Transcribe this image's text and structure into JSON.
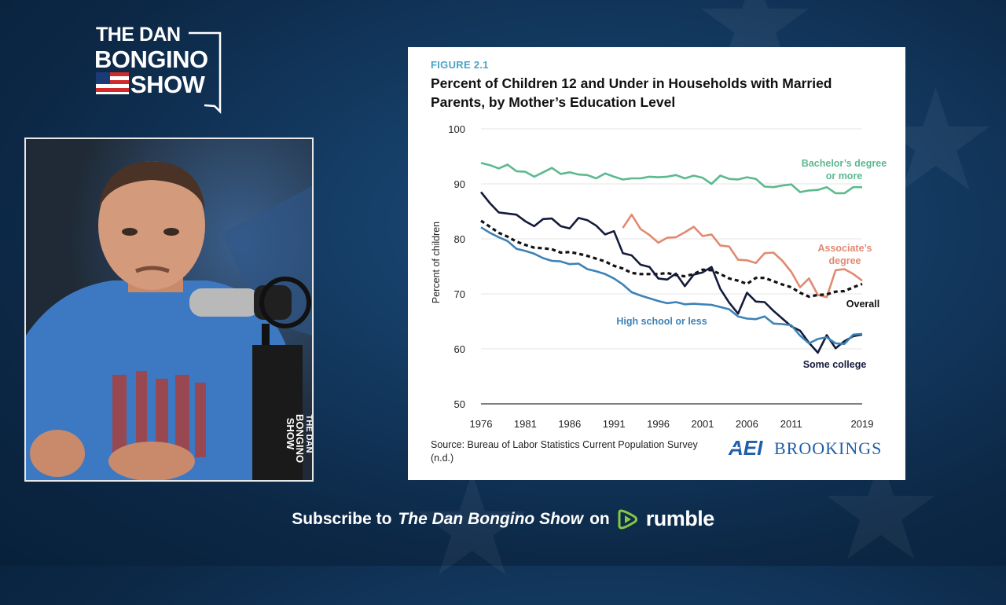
{
  "logo": {
    "line1": "THE DAN",
    "line2": "BONGINO",
    "line3": "SHOW"
  },
  "mic_logo": {
    "line1": "THE DAN",
    "line2": "BONGINO",
    "line3": "SHOW"
  },
  "figure_label": "FIGURE 2.1",
  "chart_title": "Percent of Children 12 and Under in Households with Married Parents, by Mother’s Education Level",
  "source": "Source: Bureau of Labor Statistics Current Population Survey (n.d.)",
  "aei_logo": {
    "left": "AEI",
    "right": "BROOKINGS"
  },
  "subscribe": {
    "prefix": "Subscribe to",
    "show": "The Dan Bongino Show",
    "on": "on",
    "platform": "rumble"
  },
  "colors": {
    "bachelors": "#5cb98f",
    "associates": "#e08a72",
    "overall": "#111111",
    "some_college": "#141a3c",
    "high_school": "#3d82b6",
    "accent": "#4aa3c8"
  },
  "chart_data": {
    "type": "line",
    "ylabel": "Percent of children",
    "xlabel": "",
    "ylim": [
      50,
      100
    ],
    "xlim": [
      1976,
      2019
    ],
    "yticks": [
      "100",
      "90",
      "80",
      "70",
      "60",
      "50"
    ],
    "xticks": [
      "1976",
      "1981",
      "1986",
      "1991",
      "1996",
      "2001",
      "2006",
      "2011",
      "2019"
    ],
    "grid": true,
    "series": [
      {
        "name": "Bachelor’s degree or more",
        "label_lines": [
          "Bachelor’s degree",
          "or more"
        ],
        "color": "#5cb98f",
        "style": "solid",
        "x": [
          1976,
          1977,
          1978,
          1979,
          1980,
          1981,
          1982,
          1983,
          1984,
          1985,
          1986,
          1987,
          1988,
          1989,
          1990,
          1991,
          1992,
          1993,
          1994,
          1995,
          1996,
          1997,
          1998,
          1999,
          2000,
          2001,
          2002,
          2003,
          2004,
          2005,
          2006,
          2007,
          2008,
          2009,
          2010,
          2011,
          2012,
          2013,
          2014,
          2015,
          2016,
          2017,
          2018,
          2019
        ],
        "y": [
          93.8,
          93.4,
          92.8,
          93.5,
          92.3,
          92.2,
          91.3,
          92.1,
          92.9,
          91.8,
          92.1,
          91.7,
          91.6,
          91.0,
          91.9,
          91.3,
          90.8,
          91.0,
          91.0,
          91.3,
          91.2,
          91.3,
          91.6,
          91.0,
          91.5,
          91.1,
          90.0,
          91.5,
          90.9,
          90.8,
          91.2,
          90.9,
          89.5,
          89.4,
          89.7,
          89.9,
          88.5,
          88.8,
          88.9,
          89.4,
          88.3,
          88.3,
          89.4,
          89.4
        ]
      },
      {
        "name": "Associate’s degree",
        "label_lines": [
          "Associate’s",
          "degree"
        ],
        "color": "#e08a72",
        "style": "solid",
        "x": [
          1992,
          1993,
          1994,
          1995,
          1996,
          1997,
          1998,
          1999,
          2000,
          2001,
          2002,
          2003,
          2004,
          2005,
          2006,
          2007,
          2008,
          2009,
          2010,
          2011,
          2012,
          2013,
          2014,
          2015,
          2016,
          2017,
          2018,
          2019
        ],
        "y": [
          82.0,
          84.4,
          81.8,
          80.7,
          79.3,
          80.2,
          80.3,
          81.2,
          82.2,
          80.5,
          80.8,
          78.8,
          78.6,
          76.2,
          76.1,
          75.6,
          77.4,
          77.5,
          76.0,
          74.0,
          71.2,
          72.8,
          69.8,
          69.4,
          74.3,
          74.5,
          73.6,
          72.4
        ]
      },
      {
        "name": "Overall",
        "label_lines": [
          "Overall"
        ],
        "color": "#111111",
        "style": "dashed",
        "x": [
          1976,
          1977,
          1978,
          1979,
          1980,
          1981,
          1982,
          1983,
          1984,
          1985,
          1986,
          1987,
          1988,
          1989,
          1990,
          1991,
          1992,
          1993,
          1994,
          1995,
          1996,
          1997,
          1998,
          1999,
          2000,
          2001,
          2002,
          2003,
          2004,
          2005,
          2006,
          2007,
          2008,
          2009,
          2010,
          2011,
          2012,
          2013,
          2014,
          2015,
          2016,
          2017,
          2018,
          2019
        ],
        "y": [
          83.3,
          82.2,
          81.1,
          80.4,
          79.5,
          78.9,
          78.4,
          78.3,
          78.1,
          77.5,
          77.6,
          77.3,
          76.9,
          76.4,
          75.9,
          75.1,
          74.6,
          73.8,
          73.6,
          73.6,
          73.6,
          73.8,
          73.4,
          73.2,
          73.6,
          74.4,
          74.3,
          73.6,
          72.8,
          72.4,
          71.8,
          72.9,
          72.9,
          72.3,
          71.7,
          71.2,
          70.2,
          69.5,
          69.8,
          69.9,
          70.4,
          70.5,
          71.2,
          71.8
        ]
      },
      {
        "name": "Some college",
        "label_lines": [
          "Some college"
        ],
        "color": "#141a3c",
        "style": "solid",
        "x": [
          1976,
          1977,
          1978,
          1979,
          1980,
          1981,
          1982,
          1983,
          1984,
          1985,
          1986,
          1987,
          1988,
          1989,
          1990,
          1991,
          1992,
          1993,
          1994,
          1995,
          1996,
          1997,
          1998,
          1999,
          2000,
          2001,
          2002,
          2003,
          2004,
          2005,
          2006,
          2007,
          2008,
          2009,
          2010,
          2011,
          2012,
          2013,
          2014,
          2015,
          2016,
          2017,
          2018,
          2019
        ],
        "y": [
          88.5,
          86.5,
          84.8,
          84.6,
          84.4,
          83.2,
          82.3,
          83.6,
          83.7,
          82.3,
          81.9,
          83.8,
          83.4,
          82.4,
          80.8,
          81.4,
          77.4,
          77.0,
          75.3,
          74.9,
          72.8,
          72.6,
          73.7,
          71.4,
          73.5,
          73.9,
          74.9,
          70.9,
          68.4,
          66.4,
          70.2,
          68.6,
          68.5,
          66.9,
          65.5,
          64.1,
          63.3,
          61.1,
          59.3,
          62.5,
          60.1,
          61.4,
          62.3,
          62.6
        ]
      },
      {
        "name": "High school or less",
        "label_lines": [
          "High school or less"
        ],
        "color": "#3d82b6",
        "style": "solid",
        "x": [
          1976,
          1977,
          1978,
          1979,
          1980,
          1981,
          1982,
          1983,
          1984,
          1985,
          1986,
          1987,
          1988,
          1989,
          1990,
          1991,
          1992,
          1993,
          1994,
          1995,
          1996,
          1997,
          1998,
          1999,
          2000,
          2001,
          2002,
          2003,
          2004,
          2005,
          2006,
          2007,
          2008,
          2009,
          2010,
          2011,
          2012,
          2013,
          2014,
          2015,
          2016,
          2017,
          2018,
          2019
        ],
        "y": [
          82.1,
          81.1,
          80.3,
          79.6,
          78.2,
          77.8,
          77.3,
          76.5,
          76.0,
          75.9,
          75.4,
          75.5,
          74.5,
          74.1,
          73.6,
          72.8,
          71.7,
          70.3,
          69.7,
          69.2,
          68.7,
          68.3,
          68.5,
          68.1,
          68.2,
          68.1,
          68.0,
          67.6,
          67.2,
          65.9,
          65.5,
          65.4,
          65.9,
          64.6,
          64.5,
          64.3,
          62.4,
          61.0,
          61.8,
          62.1,
          61.0,
          60.9,
          62.6,
          62.7
        ]
      }
    ]
  }
}
